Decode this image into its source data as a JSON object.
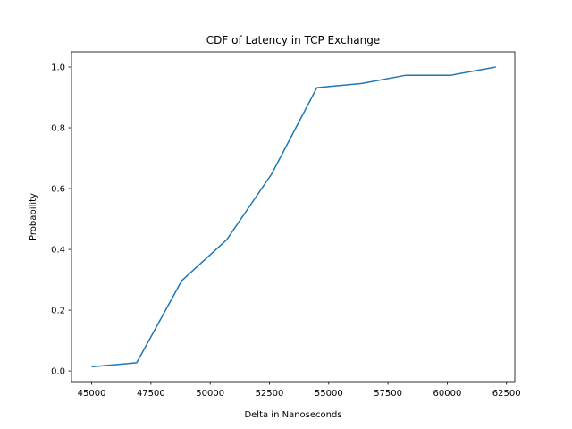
{
  "chart_data": {
    "type": "line",
    "title": "CDF of Latency in TCP Exchange",
    "xlabel": "Delta in Nanoseconds",
    "ylabel": "Probability",
    "xlim": [
      44150,
      62850
    ],
    "ylim": [
      -0.035,
      1.05
    ],
    "x_ticks": [
      45000,
      47500,
      50000,
      52500,
      55000,
      57500,
      60000,
      62500
    ],
    "y_ticks": [
      0.0,
      0.2,
      0.4,
      0.6,
      0.8,
      1.0
    ],
    "grid": false,
    "legend": "none",
    "series": [
      {
        "color": "#1f77b4",
        "x": [
          45000,
          46900,
          48800,
          50700,
          52600,
          54500,
          56400,
          58250,
          60150,
          62050
        ],
        "y": [
          0.014,
          0.027,
          0.297,
          0.432,
          0.649,
          0.932,
          0.946,
          0.973,
          0.973,
          1.0
        ]
      }
    ]
  }
}
